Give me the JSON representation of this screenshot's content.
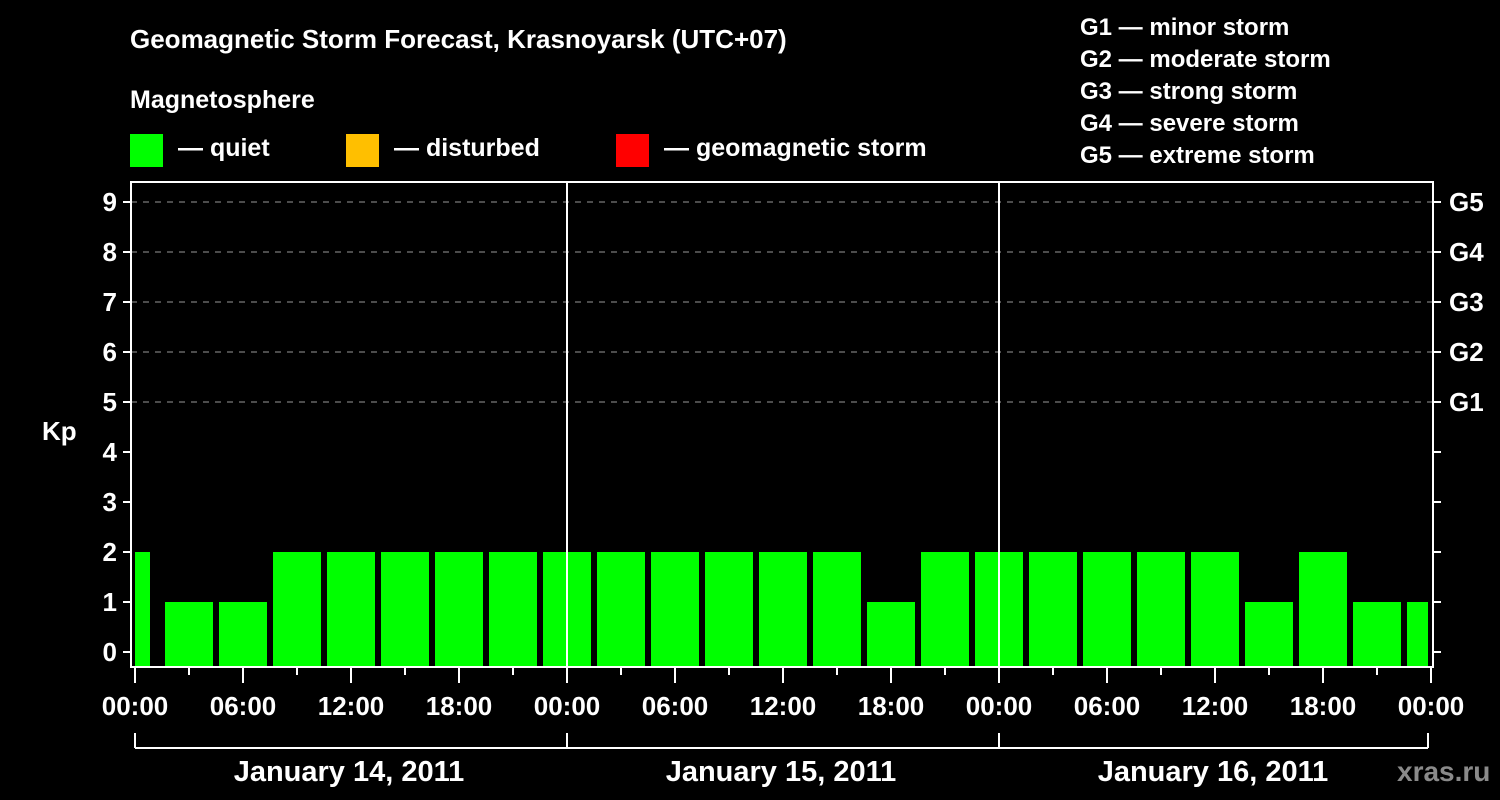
{
  "header": {
    "title": "Geomagnetic Storm Forecast, Krasnoyarsk (UTC+07)",
    "subtitle": "Magnetosphere"
  },
  "legend": [
    {
      "label": "— quiet",
      "color": "#00ff00"
    },
    {
      "label": "— disturbed",
      "color": "#ffbf00"
    },
    {
      "label": "— geomagnetic storm",
      "color": "#ff0000"
    }
  ],
  "g_scale": [
    "G1 — minor storm",
    "G2 — moderate storm",
    "G3 — strong storm",
    "G4 — severe storm",
    "G5 — extreme storm"
  ],
  "watermark": "xras.ru",
  "chart_data": {
    "type": "bar",
    "title": "Geomagnetic Storm Forecast, Krasnoyarsk (UTC+07)",
    "xlabel": "",
    "ylabel": "Kp",
    "ylim": [
      0,
      9
    ],
    "y_ticks": [
      "0",
      "1",
      "2",
      "3",
      "4",
      "5",
      "6",
      "7",
      "8",
      "9"
    ],
    "right_ticks": [
      {
        "kp": 5,
        "label": "G1"
      },
      {
        "kp": 6,
        "label": "G2"
      },
      {
        "kp": 7,
        "label": "G3"
      },
      {
        "kp": 8,
        "label": "G4"
      },
      {
        "kp": 9,
        "label": "G5"
      }
    ],
    "grid": "dashed horizontal at Kp 5-9",
    "x_tick_labels": [
      "00:00",
      "06:00",
      "12:00",
      "18:00",
      "00:00",
      "06:00",
      "12:00",
      "18:00",
      "00:00",
      "06:00",
      "12:00",
      "18:00",
      "00:00"
    ],
    "dates": [
      "January 14, 2011",
      "January 15, 2011",
      "January 16, 2011"
    ],
    "categories": [
      "Jan 14 00:00",
      "Jan 14 03:00",
      "Jan 14 06:00",
      "Jan 14 09:00",
      "Jan 14 12:00",
      "Jan 14 15:00",
      "Jan 14 18:00",
      "Jan 14 21:00",
      "Jan 15 00:00",
      "Jan 15 03:00",
      "Jan 15 06:00",
      "Jan 15 09:00",
      "Jan 15 12:00",
      "Jan 15 15:00",
      "Jan 15 18:00",
      "Jan 15 21:00",
      "Jan 16 00:00",
      "Jan 16 03:00",
      "Jan 16 06:00",
      "Jan 16 09:00",
      "Jan 16 12:00",
      "Jan 16 15:00",
      "Jan 16 18:00",
      "Jan 16 21:00",
      "Jan 17 00:00"
    ],
    "values": [
      2,
      1,
      1,
      2,
      2,
      2,
      2,
      2,
      2,
      2,
      2,
      2,
      2,
      2,
      1,
      2,
      2,
      2,
      2,
      2,
      2,
      1,
      2,
      1,
      1
    ],
    "bar_color": "#00ff00"
  }
}
